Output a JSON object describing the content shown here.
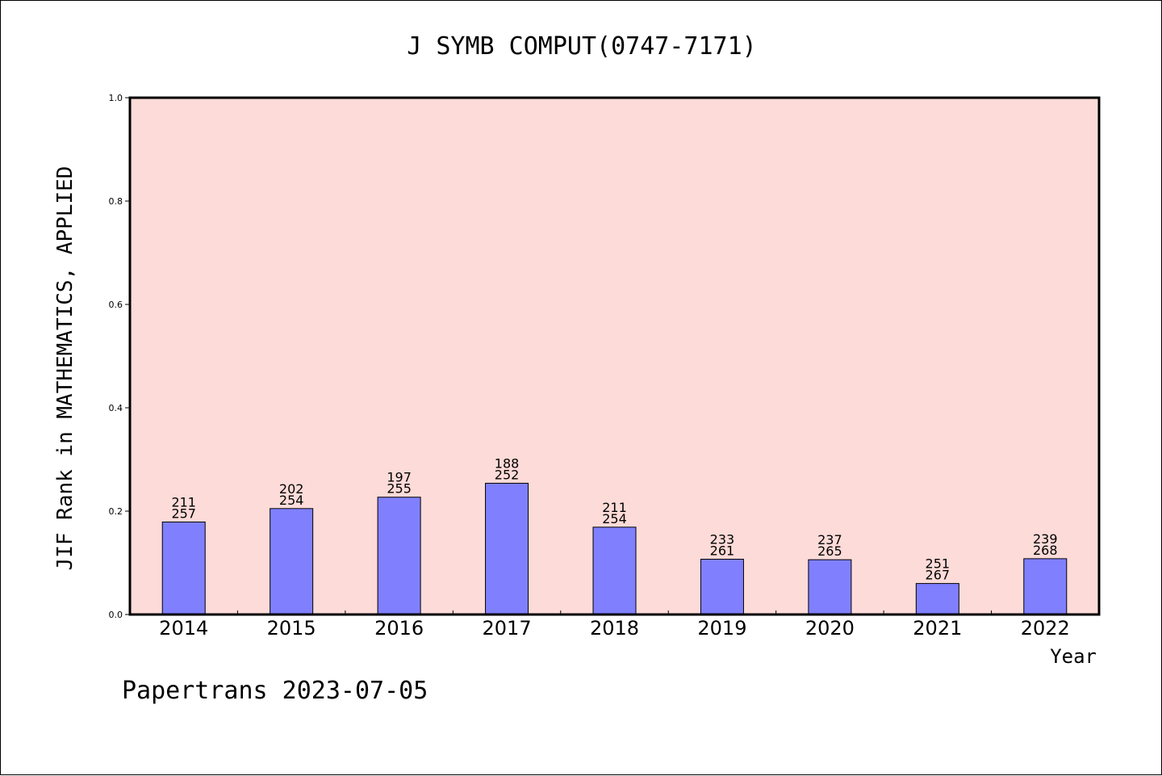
{
  "chart_data": {
    "type": "bar",
    "title": "J SYMB COMPUT(0747-7171)",
    "xlabel": "Year",
    "ylabel": "JIF Rank in MATHEMATICS, APPLIED",
    "ylim": [
      0,
      1.0
    ],
    "yticks": [
      "0.0",
      "0.2",
      "0.4",
      "0.6",
      "0.8",
      "1.0"
    ],
    "grid": false,
    "categories": [
      "2014",
      "2015",
      "2016",
      "2017",
      "2018",
      "2019",
      "2020",
      "2021",
      "2022"
    ],
    "values": [
      0.179,
      0.205,
      0.227,
      0.254,
      0.169,
      0.107,
      0.106,
      0.06,
      0.108
    ],
    "rank_labels": [
      "211",
      "202",
      "197",
      "188",
      "211",
      "233",
      "237",
      "251",
      "239"
    ],
    "total_labels": [
      "257",
      "254",
      "255",
      "252",
      "254",
      "261",
      "265",
      "267",
      "268"
    ],
    "colors": {
      "plot_background": "#fddbd8",
      "bar_fill": "#8080ff",
      "bar_stroke": "#000000"
    }
  },
  "footer": "Papertrans 2023-07-05"
}
